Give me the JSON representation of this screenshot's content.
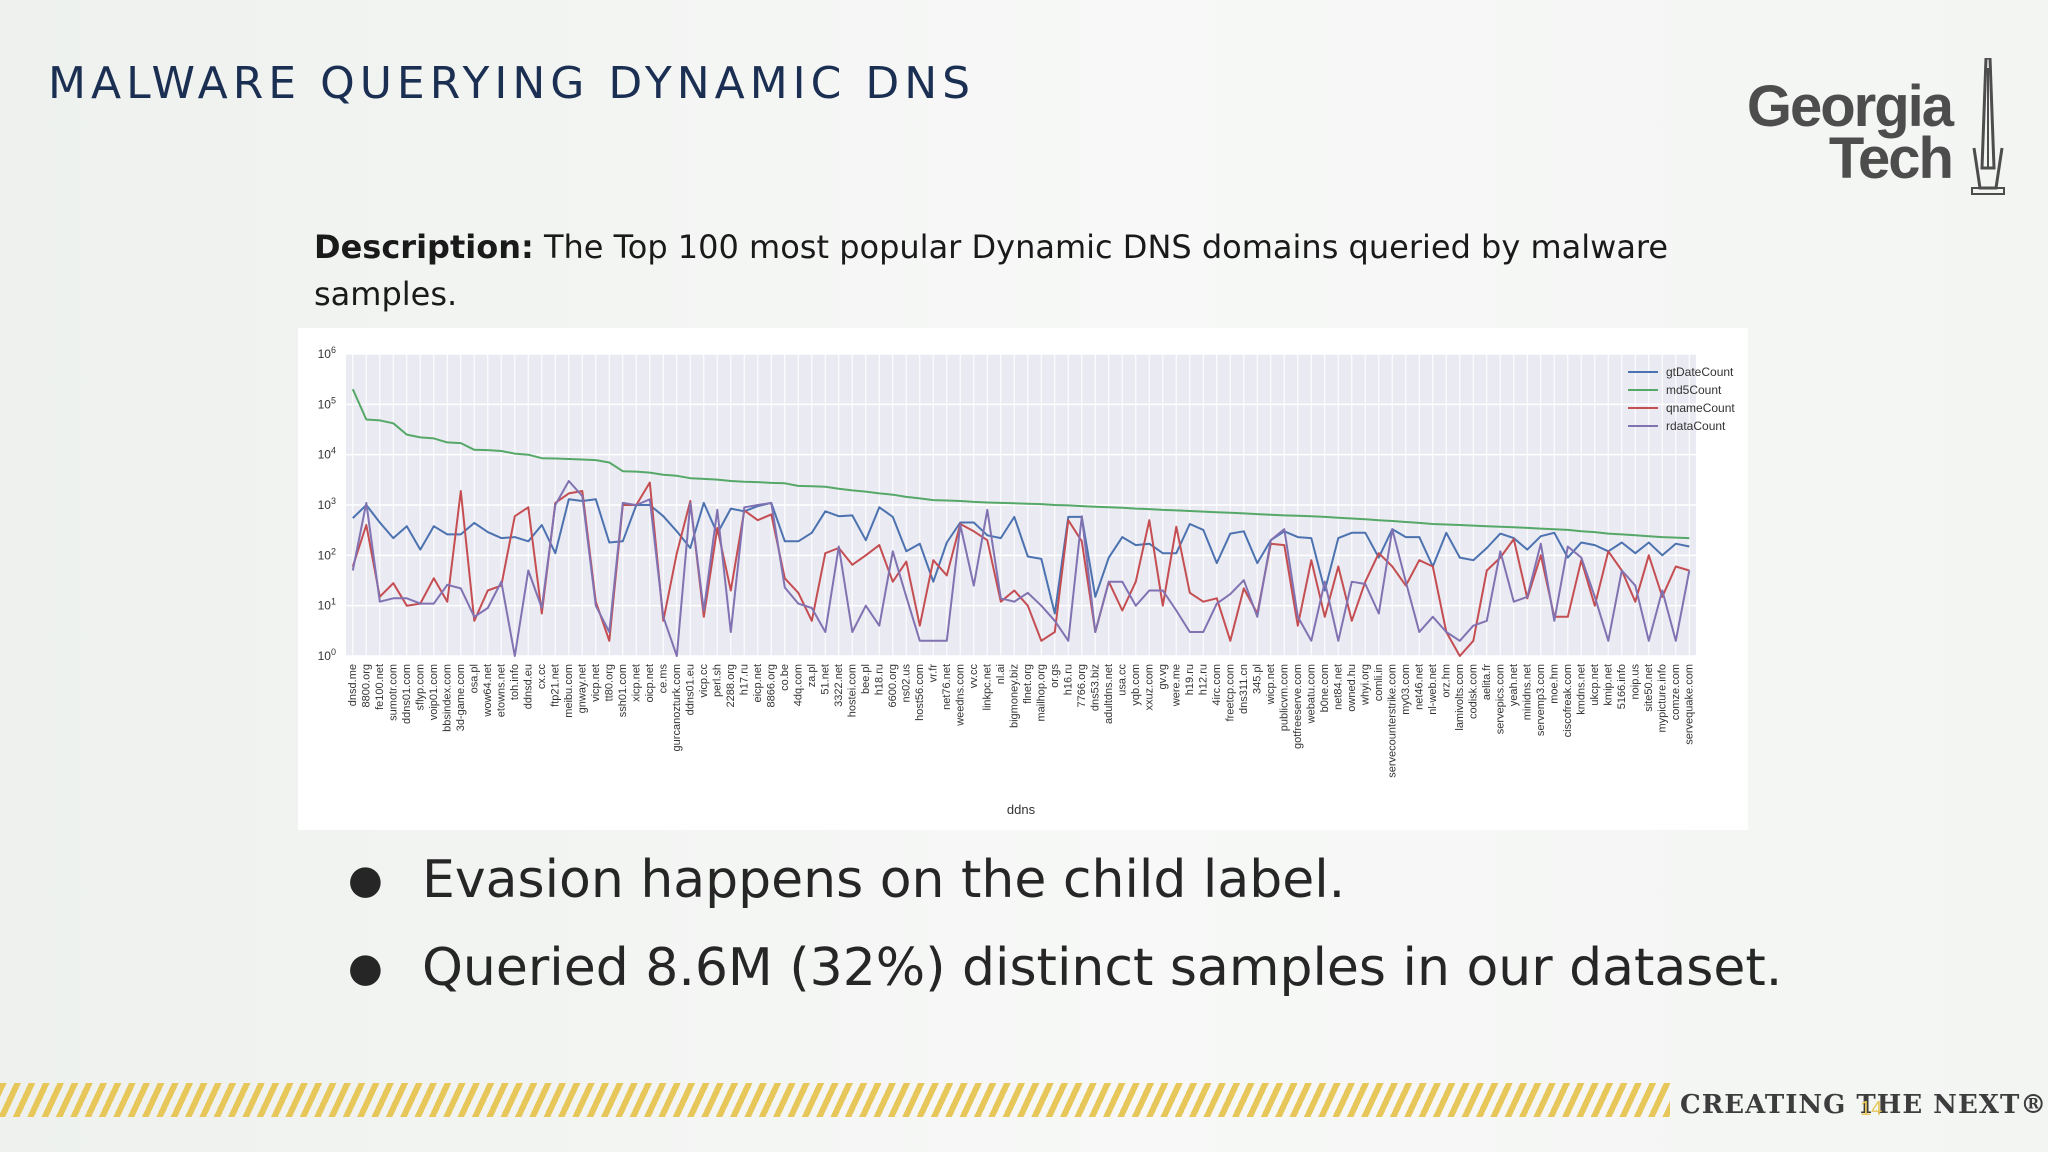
{
  "slide": {
    "title": "MALWARE QUERYING DYNAMIC DNS",
    "description_label": "Description:",
    "description_text": " The Top 100 most popular Dynamic DNS domains queried by malware samples.",
    "bullets": [
      "Evasion happens on the child label.",
      "Queried 8.6M (32%) distinct samples in our dataset."
    ],
    "logo": {
      "line1": "Georgia",
      "line2": "Tech"
    },
    "tagline": "CREATING THE NEXT®",
    "page_number": "14",
    "colors": {
      "title": "#1b2f52",
      "stripe": "#e8c75a",
      "logo": "#4d4d4d"
    }
  },
  "chart_data": {
    "type": "line",
    "xlabel": "ddns",
    "ylabel": "",
    "y_scale": "log",
    "ylim": [
      1,
      1000000
    ],
    "y_ticks": [
      1,
      10,
      100,
      1000,
      10000,
      100000,
      1000000
    ],
    "y_tick_labels": [
      [
        "10",
        "0"
      ],
      [
        "10",
        "1"
      ],
      [
        "10",
        "2"
      ],
      [
        "10",
        "3"
      ],
      [
        "10",
        "4"
      ],
      [
        "10",
        "5"
      ],
      [
        "10",
        "6"
      ]
    ],
    "grid": true,
    "legend": "top-right",
    "categories": [
      "dnsd.me",
      "8800.org",
      "fe100.net",
      "sumotr.com",
      "ddns01.com",
      "sflyp.com",
      "voip01.com",
      "bbsindex.com",
      "3d-game.com",
      "osa.pl",
      "wow64.net",
      "etowns.net",
      "toh.info",
      "ddnsd.eu",
      "cx.cc",
      "ftp21.net",
      "meibu.com",
      "gnway.net",
      "vicp.net",
      "tt80.org",
      "ssh01.com",
      "xicp.net",
      "oicp.net",
      "ce.ms",
      "gurcanozturk.com",
      "ddns01.eu",
      "vicp.cc",
      "perl.sh",
      "2288.org",
      "h17.ru",
      "eicp.net",
      "8866.org",
      "co.be",
      "4dq.com",
      "za.pl",
      "51.net",
      "3322.net",
      "hostei.com",
      "bee.pl",
      "h18.ru",
      "6600.org",
      "ns02.us",
      "host56.com",
      "vr.fr",
      "net76.net",
      "weedns.com",
      "vv.cc",
      "linkpc.net",
      "nl.ai",
      "bigmoney.biz",
      "flnet.org",
      "mailhop.org",
      "or.gs",
      "h16.ru",
      "7766.org",
      "dns53.biz",
      "adultdns.net",
      "usa.cc",
      "yqb.com",
      "xxuz.com",
      "gv.vg",
      "were.me",
      "h19.ru",
      "h12.ru",
      "4irc.com",
      "freetcp.com",
      "dns311.cn",
      "345.pl",
      "wicp.net",
      "publicvm.com",
      "gotfreeserve.com",
      "webatu.com",
      "b0ne.com",
      "net84.net",
      "owned.hu",
      "whyi.org",
      "comli.in",
      "servecounterstrike.com",
      "my03.com",
      "net46.net",
      "nl-web.net",
      "orz.hm",
      "lamivolts.com",
      "codisk.com",
      "aelita.fr",
      "servepics.com",
      "yeah.net",
      "minidns.net",
      "servemp3.com",
      "moe.hm",
      "ciscofreak.com",
      "kmdns.net",
      "ukcp.net",
      "kmip.net",
      "5166.info",
      "noip.us",
      "site50.net",
      "mypicture.info",
      "comze.com",
      "servequake.com"
    ],
    "series": [
      {
        "name": "gtDateCount",
        "color": "#4c72b0",
        "values": [
          550,
          1000,
          450,
          220,
          380,
          130,
          380,
          260,
          260,
          440,
          290,
          220,
          230,
          190,
          400,
          110,
          1300,
          1200,
          1300,
          180,
          190,
          1000,
          1000,
          600,
          300,
          140,
          1100,
          270,
          850,
          750,
          950,
          1100,
          190,
          190,
          280,
          750,
          600,
          620,
          200,
          900,
          580,
          120,
          170,
          30,
          180,
          450,
          450,
          250,
          220,
          580,
          95,
          85,
          7,
          580,
          580,
          15,
          90,
          230,
          160,
          170,
          110,
          110,
          420,
          320,
          70,
          270,
          300,
          70,
          200,
          300,
          230,
          220,
          20,
          220,
          280,
          280,
          90,
          330,
          230,
          230,
          60,
          280,
          90,
          80,
          140,
          270,
          220,
          130,
          240,
          280,
          90,
          180,
          160,
          120,
          180,
          110,
          180,
          100,
          170,
          150
        ]
      },
      {
        "name": "md5Count",
        "color": "#55a868",
        "values": [
          200000,
          50000,
          48000,
          42000,
          25000,
          22000,
          21000,
          17500,
          17000,
          12500,
          12300,
          11800,
          10500,
          10000,
          8500,
          8400,
          8200,
          8000,
          7800,
          7000,
          4700,
          4600,
          4400,
          4000,
          3800,
          3400,
          3300,
          3200,
          3000,
          2900,
          2850,
          2750,
          2700,
          2400,
          2350,
          2300,
          2100,
          1950,
          1850,
          1700,
          1600,
          1450,
          1350,
          1250,
          1230,
          1200,
          1150,
          1120,
          1100,
          1080,
          1060,
          1040,
          1000,
          980,
          950,
          920,
          900,
          880,
          850,
          830,
          800,
          780,
          760,
          740,
          720,
          700,
          680,
          660,
          640,
          620,
          610,
          600,
          580,
          560,
          540,
          520,
          500,
          480,
          460,
          440,
          420,
          410,
          400,
          390,
          380,
          370,
          360,
          350,
          340,
          330,
          320,
          300,
          290,
          270,
          260,
          250,
          240,
          230,
          225,
          220
        ]
      },
      {
        "name": "qnameCount",
        "color": "#c44e52",
        "values": [
          60,
          400,
          15,
          28,
          10,
          11,
          35,
          12,
          1900,
          5,
          20,
          25,
          600,
          900,
          7,
          1100,
          1700,
          1900,
          12,
          2,
          1000,
          1000,
          2800,
          5,
          110,
          1200,
          6,
          350,
          20,
          780,
          500,
          650,
          35,
          18,
          5,
          110,
          140,
          65,
          100,
          160,
          30,
          75,
          4,
          80,
          40,
          420,
          300,
          200,
          12,
          20,
          10,
          2,
          3,
          500,
          190,
          3,
          30,
          8,
          30,
          500,
          10,
          370,
          18,
          12,
          14,
          2,
          22,
          7,
          170,
          160,
          4,
          80,
          6,
          60,
          5,
          30,
          110,
          60,
          25,
          80,
          60,
          3,
          1,
          2,
          50,
          90,
          210,
          14,
          100,
          6,
          6,
          80,
          10,
          120,
          50,
          12,
          100,
          15,
          60,
          50
        ]
      },
      {
        "name": "rdataCount",
        "color": "#8172b2",
        "values": [
          50,
          1100,
          12,
          14,
          14,
          11,
          11,
          26,
          22,
          6,
          9,
          30,
          1,
          50,
          9,
          1000,
          3000,
          1500,
          10,
          3,
          1100,
          1000,
          1300,
          6,
          1,
          1100,
          8,
          800,
          3,
          900,
          1000,
          1100,
          23,
          11,
          9,
          3,
          150,
          3,
          10,
          4,
          120,
          15,
          2,
          2,
          2,
          400,
          25,
          800,
          14,
          12,
          18,
          10,
          5,
          2,
          600,
          3,
          30,
          30,
          10,
          20,
          20,
          8,
          3,
          3,
          11,
          17,
          32,
          6,
          200,
          330,
          6,
          2,
          30,
          2,
          30,
          27,
          7,
          330,
          30,
          3,
          6,
          3,
          2,
          4,
          5,
          120,
          12,
          15,
          170,
          5,
          150,
          90,
          15,
          2,
          50,
          25,
          2,
          20,
          2,
          50
        ]
      }
    ]
  }
}
